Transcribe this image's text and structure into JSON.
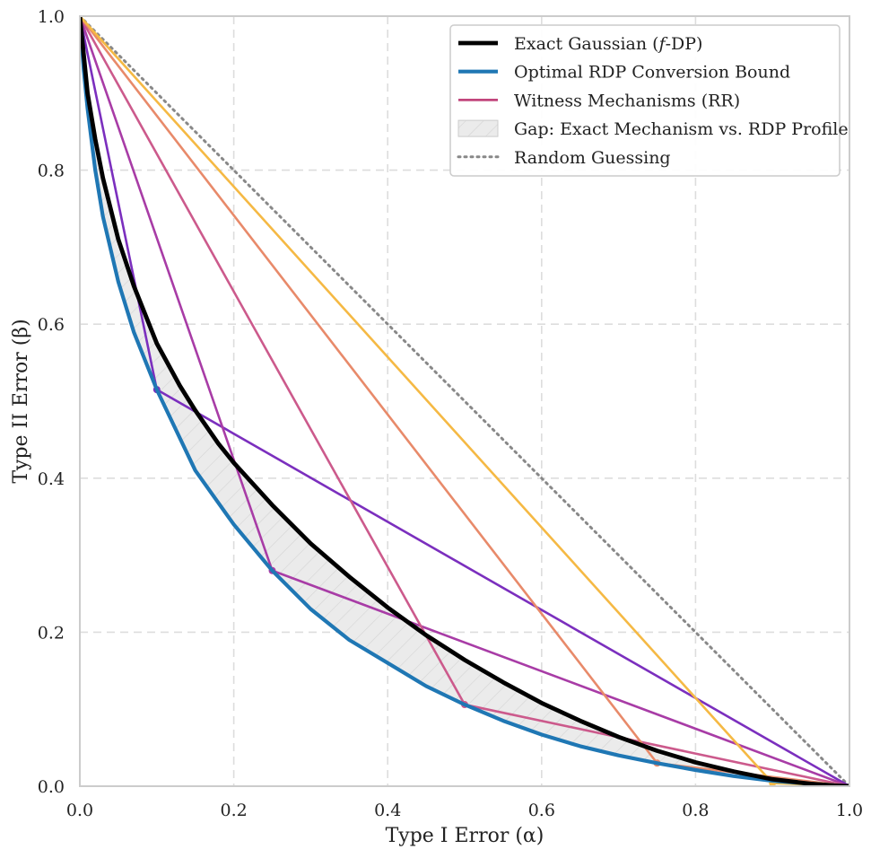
{
  "chart_data": {
    "type": "line",
    "title": "",
    "xlabel": "Type I Error (α)",
    "ylabel": "Type II Error (β)",
    "xlim": [
      0,
      1
    ],
    "ylim": [
      0,
      1
    ],
    "xticks": [
      "0.0",
      "0.2",
      "0.4",
      "0.6",
      "0.8",
      "1.0"
    ],
    "yticks": [
      "0.0",
      "0.2",
      "0.4",
      "0.6",
      "0.8",
      "1.0"
    ],
    "grid": true,
    "legend_position": "top-right",
    "series": [
      {
        "name": "Exact Gaussian (f-DP)",
        "color": "#000000",
        "x": [
          0,
          0.005,
          0.01,
          0.02,
          0.03,
          0.05,
          0.07,
          0.1,
          0.13,
          0.15,
          0.18,
          0.2,
          0.25,
          0.3,
          0.35,
          0.4,
          0.45,
          0.5,
          0.55,
          0.6,
          0.65,
          0.7,
          0.75,
          0.8,
          0.85,
          0.9,
          0.95,
          0.98,
          1.0
        ],
        "y": [
          1.0,
          0.95,
          0.9,
          0.84,
          0.79,
          0.71,
          0.65,
          0.575,
          0.52,
          0.488,
          0.445,
          0.42,
          0.365,
          0.315,
          0.272,
          0.232,
          0.196,
          0.164,
          0.135,
          0.108,
          0.085,
          0.064,
          0.046,
          0.031,
          0.019,
          0.009,
          0.003,
          0.0008,
          0
        ]
      },
      {
        "name": "Optimal RDP Conversion Bound",
        "color": "#1f77b4",
        "x": [
          0,
          0.005,
          0.01,
          0.02,
          0.03,
          0.05,
          0.07,
          0.1,
          0.15,
          0.2,
          0.25,
          0.3,
          0.35,
          0.4,
          0.45,
          0.5,
          0.55,
          0.6,
          0.65,
          0.7,
          0.75,
          0.8,
          0.85,
          0.9,
          0.95,
          1.0
        ],
        "y": [
          1.0,
          0.93,
          0.88,
          0.8,
          0.74,
          0.655,
          0.59,
          0.515,
          0.41,
          0.34,
          0.28,
          0.23,
          0.19,
          0.16,
          0.13,
          0.106,
          0.085,
          0.067,
          0.052,
          0.04,
          0.03,
          0.021,
          0.013,
          0.007,
          0.003,
          0
        ]
      },
      {
        "name": "Witness Mechanisms (RR)",
        "color": "#c2457c",
        "witnesses": [
          {
            "corner": [
              0.1,
              0.515
            ],
            "color": "#7b2fbe"
          },
          {
            "corner": [
              0.25,
              0.28
            ],
            "color": "#a83ca6"
          },
          {
            "corner": [
              0.5,
              0.106
            ],
            "color": "#cc5a8c"
          },
          {
            "corner": [
              0.75,
              0.03
            ],
            "color": "#e88a6a"
          },
          {
            "corner": [
              0.9,
              0.004
            ],
            "color": "#f5b944"
          }
        ]
      },
      {
        "name": "Random Guessing",
        "color": "#888888",
        "x": [
          0,
          1
        ],
        "y": [
          1,
          0
        ]
      }
    ],
    "shaded_region": {
      "name": "Gap: Exact Mechanism vs. RDP Profile",
      "between": [
        "Optimal RDP Conversion Bound",
        "Exact Gaussian (f-DP)"
      ]
    },
    "legend": [
      {
        "label": "Exact Gaussian (𝑓-DP)",
        "kind": "line",
        "color": "#000000"
      },
      {
        "label": "Optimal RDP Conversion Bound",
        "kind": "line",
        "color": "#1f77b4"
      },
      {
        "label": "Witness Mechanisms (RR)",
        "kind": "line",
        "color": "#c2457c"
      },
      {
        "label": "Gap: Exact Mechanism vs. RDP Profile",
        "kind": "patch",
        "color": "#e6e6e6"
      },
      {
        "label": "Random Guessing",
        "kind": "dotted",
        "color": "#888888"
      }
    ]
  }
}
